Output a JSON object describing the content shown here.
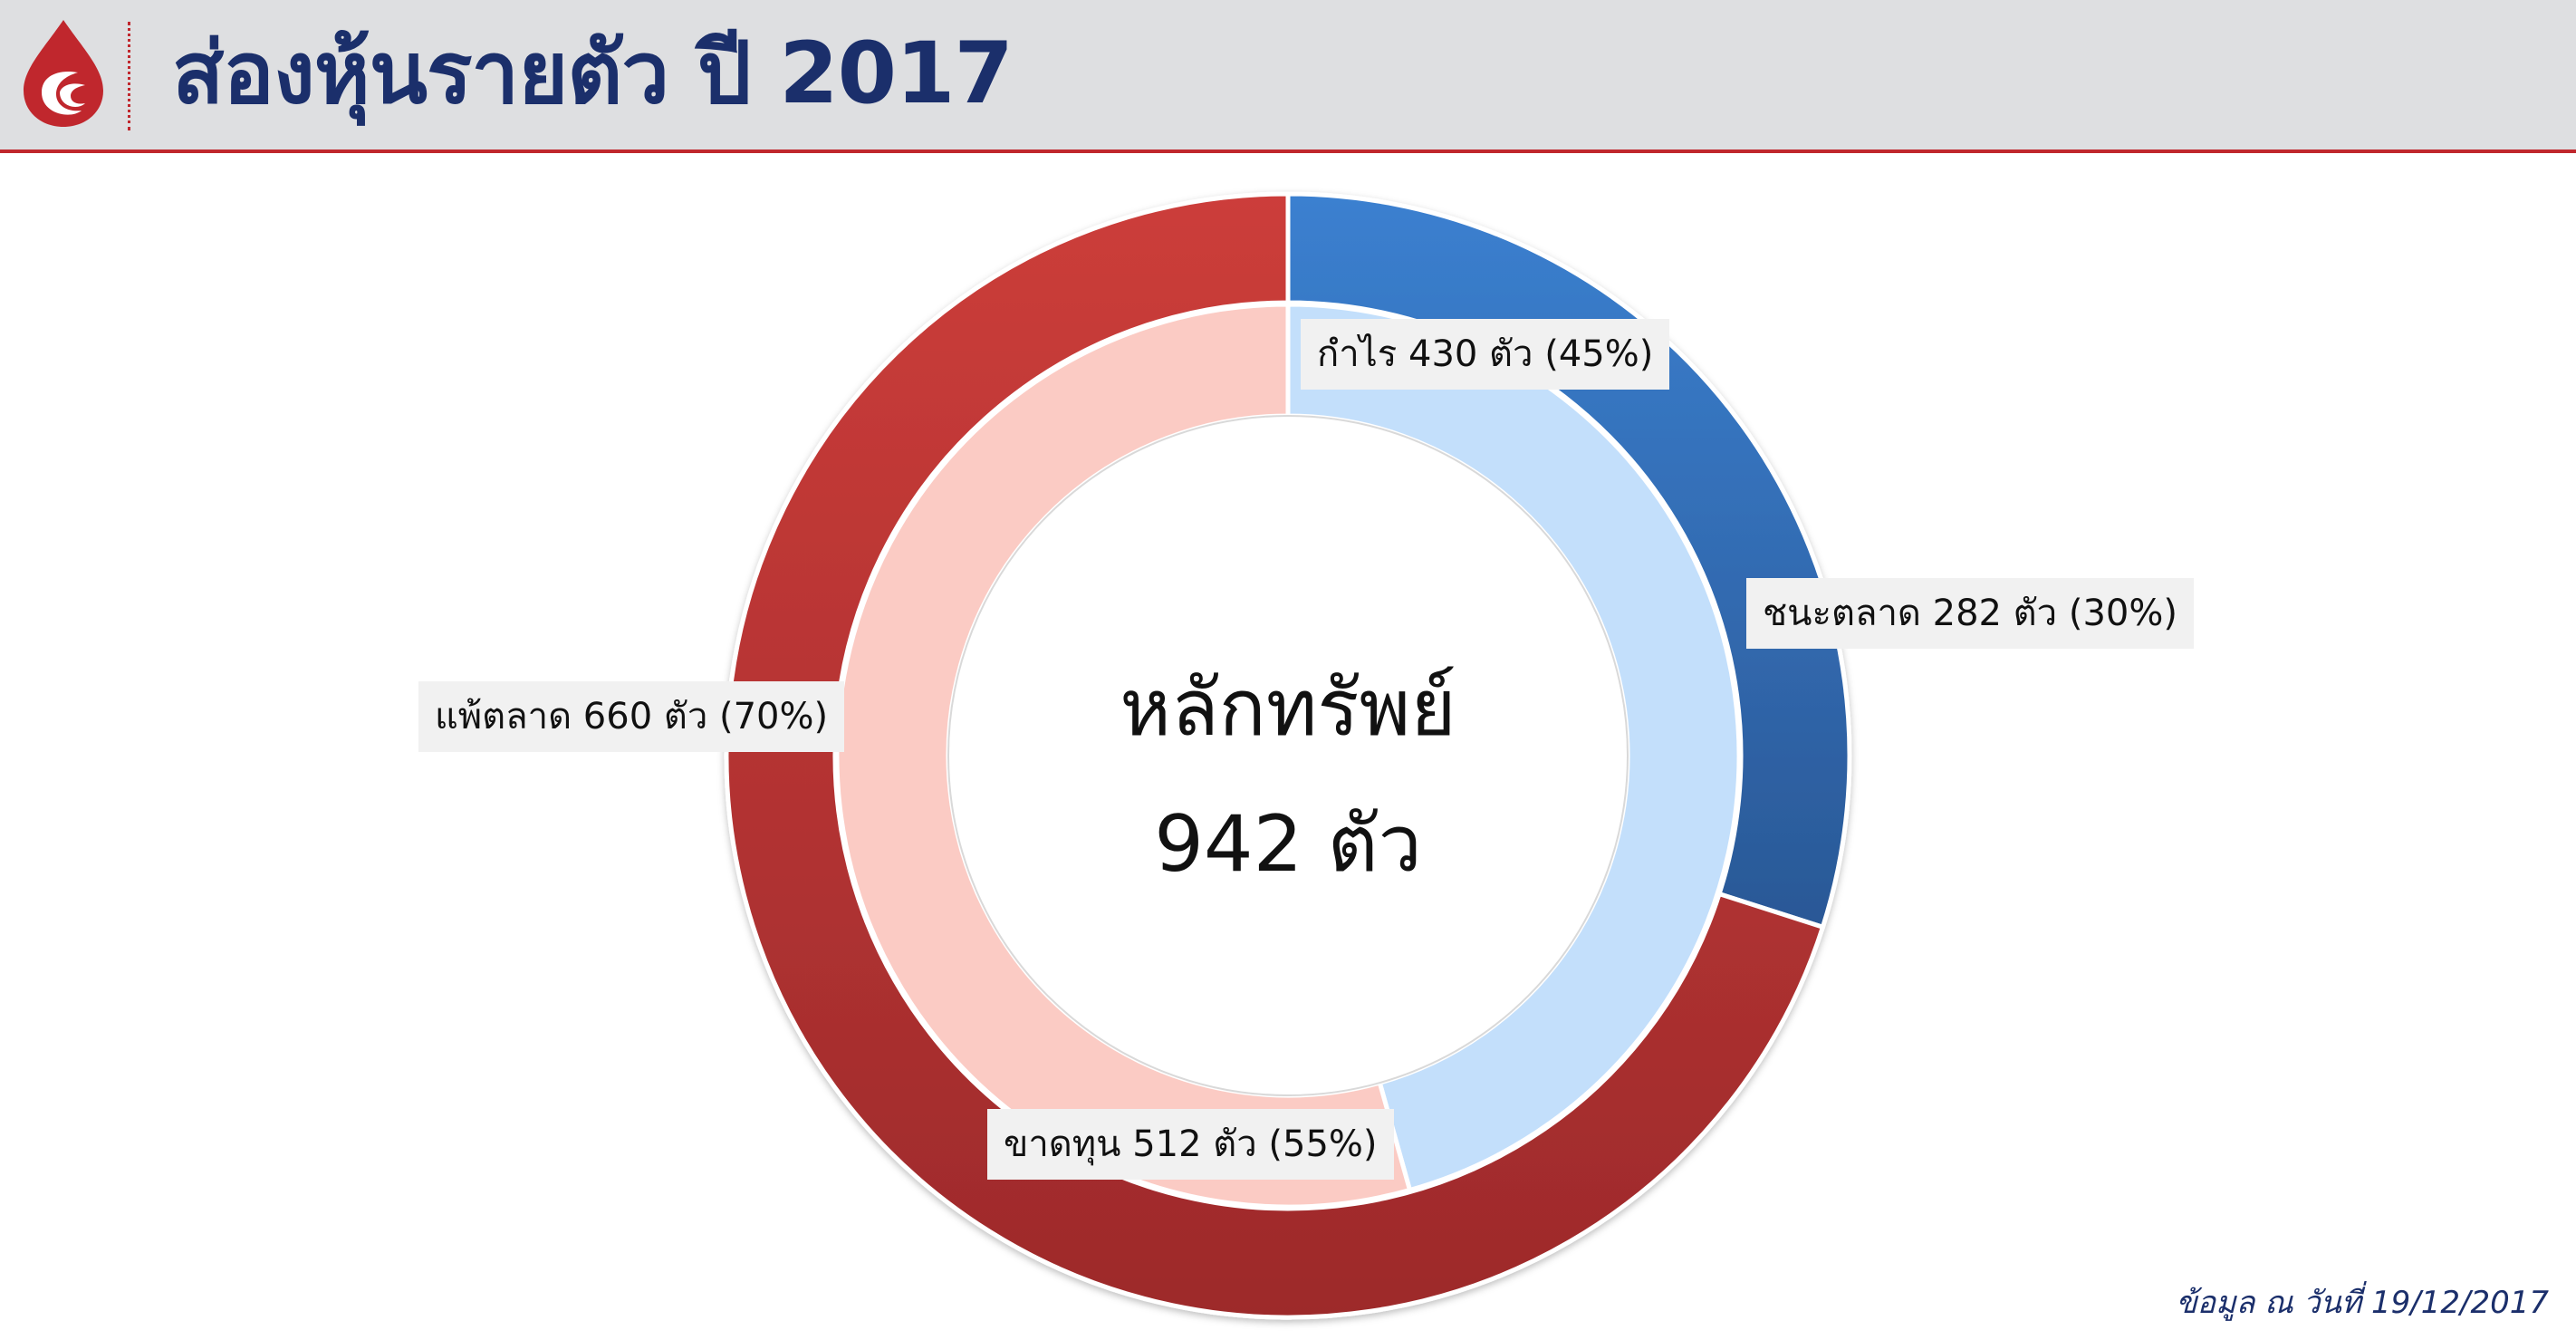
{
  "header": {
    "title": "ส่องหุ้นรายตัว ปี 2017",
    "brand_color": "#c0272d",
    "title_color": "#1b2f6b"
  },
  "chart_data": [
    {
      "type": "pie",
      "ring": "outer",
      "slices": [
        {
          "label": "ชนะตลาด 282 ตัว (30%)",
          "value": 282,
          "percent": 30,
          "color": "#2f63a8"
        },
        {
          "label": "แพ้ตลาด 660 ตัว (70%)",
          "value": 660,
          "percent": 70,
          "color": "#b5312f"
        }
      ]
    },
    {
      "type": "pie",
      "ring": "inner",
      "slices": [
        {
          "label": "กำไร 430 ตัว (45%)",
          "value": 430,
          "percent": 45,
          "color": "#c3dffb"
        },
        {
          "label": "ขาดทุน 512 ตัว (55%)",
          "value": 512,
          "percent": 55,
          "color": "#fbcbc4"
        }
      ]
    }
  ],
  "center": {
    "line1": "หลักทรัพย์",
    "line2": "942 ตัว"
  },
  "footer": {
    "source": "ข้อมูล ณ วันที่ 19/12/2017"
  }
}
